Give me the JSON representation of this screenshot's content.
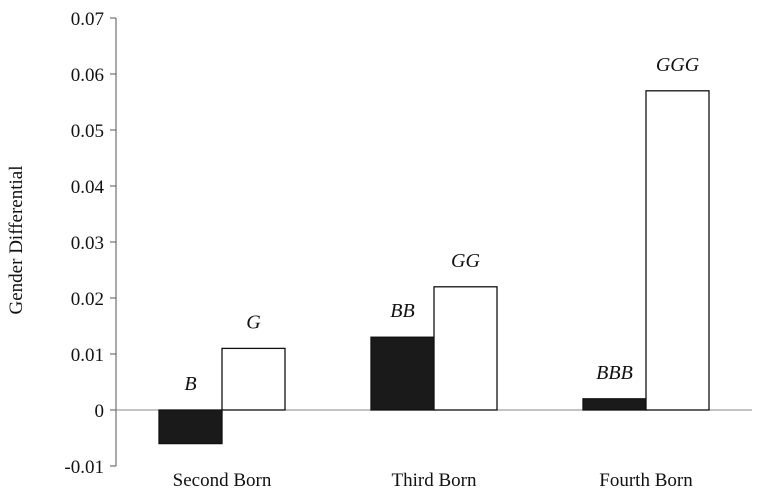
{
  "chart_data": {
    "type": "bar",
    "title": "",
    "ylabel": "Gender Differential",
    "xlabel": "",
    "categories": [
      "Second Born",
      "Third Born",
      "Fourth Born"
    ],
    "ylim": [
      -0.01,
      0.07
    ],
    "yticks": [
      "-0.01",
      "0",
      "0.01",
      "0.02",
      "0.03",
      "0.04",
      "0.05",
      "0.06",
      "0.07"
    ],
    "series": [
      {
        "fill": "#1a1a1a",
        "values": [
          -0.006,
          0.013,
          0.002
        ],
        "labels": [
          "B",
          "BB",
          "BBB"
        ]
      },
      {
        "fill": "#ffffff",
        "values": [
          0.011,
          0.022,
          0.057
        ],
        "labels": [
          "G",
          "GG",
          "GGG"
        ]
      }
    ],
    "grid": false,
    "legend": "none"
  }
}
